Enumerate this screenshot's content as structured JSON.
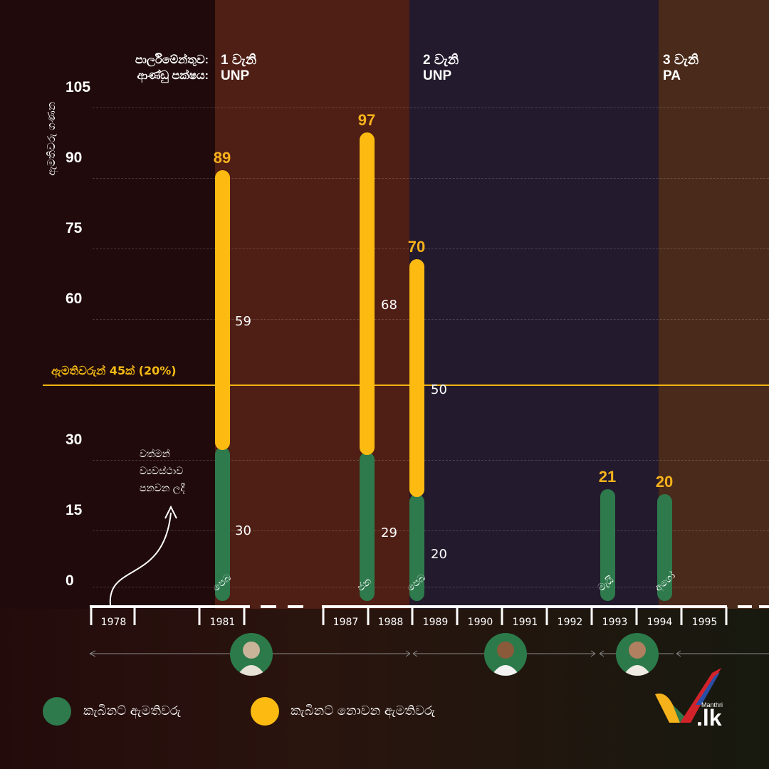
{
  "parliaments": {
    "label": "පාර්ලිමේන්තුව:\nආණ්ඩු පක්ෂය:",
    "items": [
      {
        "ordinal": "1 වැනි",
        "party": "UNP"
      },
      {
        "ordinal": "2 වැනි",
        "party": "UNP"
      },
      {
        "ordinal": "3 වැනි",
        "party": "PA"
      }
    ]
  },
  "threshold": {
    "value": 45,
    "label": "ඇමතිවරුන් 45ක් (20%)",
    "color": "#f0b313"
  },
  "annotation": "වත්මන්\nව්‍යවස්ථාව\nපනවන ලදී",
  "timeline_years": [
    "1978",
    "1981",
    "1987",
    "1988",
    "1989",
    "1990",
    "1991",
    "1992",
    "1993",
    "1994",
    "1995"
  ],
  "legend": [
    {
      "label": "කැබිනට් ඇමතිවරු",
      "color": "#2e7a4c"
    },
    {
      "label": "කැබිනට් නොවන ඇමතිවරු",
      "color": "#fdbb11"
    }
  ],
  "portraits": [
    "portrait-1",
    "portrait-2",
    "portrait-3"
  ],
  "logo": {
    "small": "Manthri",
    "main": ".lk"
  },
  "chart_data": {
    "type": "bar",
    "stacked": true,
    "ylabel": "ඇමතිවරු ගණන",
    "ylim": [
      0,
      105
    ],
    "yticks": [
      0,
      15,
      30,
      60,
      75,
      90,
      105
    ],
    "grid": true,
    "categories": [
      "පෙබ 1981",
      "ජන 1988",
      "පෙබ 1989",
      "මැයි 1993",
      "අගෝ 1994"
    ],
    "month_labels": [
      "පෙබ",
      "ජන",
      "පෙබ",
      "මැයි",
      "අගෝ"
    ],
    "series": [
      {
        "name": "කැබිනට් ඇමතිවරු",
        "values": [
          30,
          29,
          20,
          21,
          20
        ]
      },
      {
        "name": "කැබිනට් නොවන ඇමතිවරු",
        "values": [
          59,
          68,
          50,
          0,
          0
        ]
      }
    ],
    "totals": [
      89,
      97,
      70,
      21,
      20
    ]
  }
}
